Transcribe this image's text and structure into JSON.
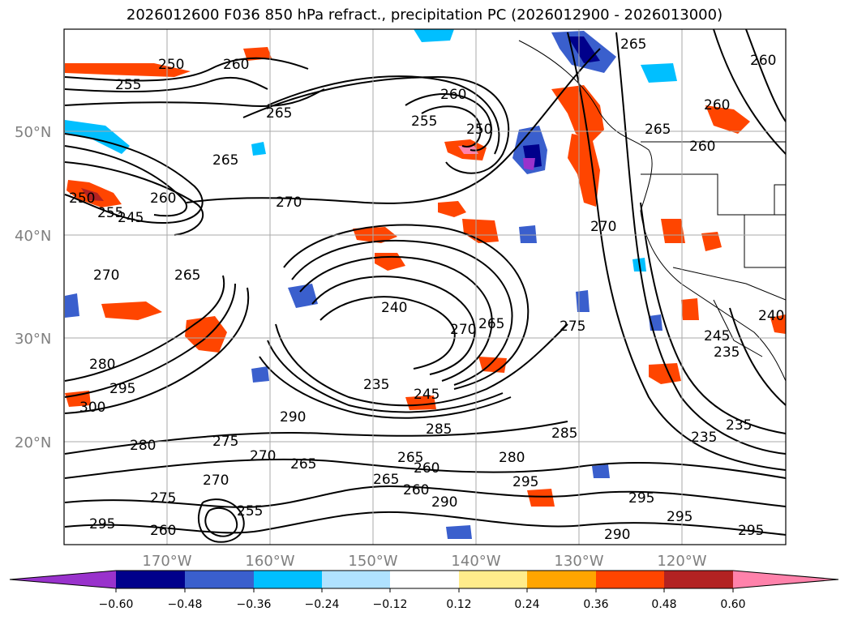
{
  "title": "2026012600 F036 850 hPa refract., precipitation PC (2026012900 - 2026013000)",
  "map": {
    "lat_labels": [
      "50°N",
      "40°N",
      "30°N",
      "20°N"
    ],
    "lon_labels": [
      "170°W",
      "160°W",
      "150°W",
      "140°W",
      "130°W",
      "120°W"
    ],
    "contour_labels": [
      {
        "text": "250"
      },
      {
        "text": "255"
      },
      {
        "text": "260"
      },
      {
        "text": "265"
      },
      {
        "text": "270"
      },
      {
        "text": "275"
      },
      {
        "text": "245"
      },
      {
        "text": "240"
      },
      {
        "text": "235"
      },
      {
        "text": "280"
      },
      {
        "text": "285"
      },
      {
        "text": "290"
      },
      {
        "text": "295"
      },
      {
        "text": "300"
      }
    ]
  },
  "colorbar": {
    "ticks": [
      "−0.60",
      "−0.48",
      "−0.36",
      "−0.24",
      "−0.12",
      "0.12",
      "0.24",
      "0.36",
      "0.48",
      "0.60"
    ],
    "colors": [
      "#9932cc",
      "#00008b",
      "#3a5fcd",
      "#00bfff",
      "#b0e2ff",
      "#ffffff",
      "#ffec8b",
      "#ffa500",
      "#ff4500",
      "#b22222",
      "#ff82ab"
    ]
  }
}
